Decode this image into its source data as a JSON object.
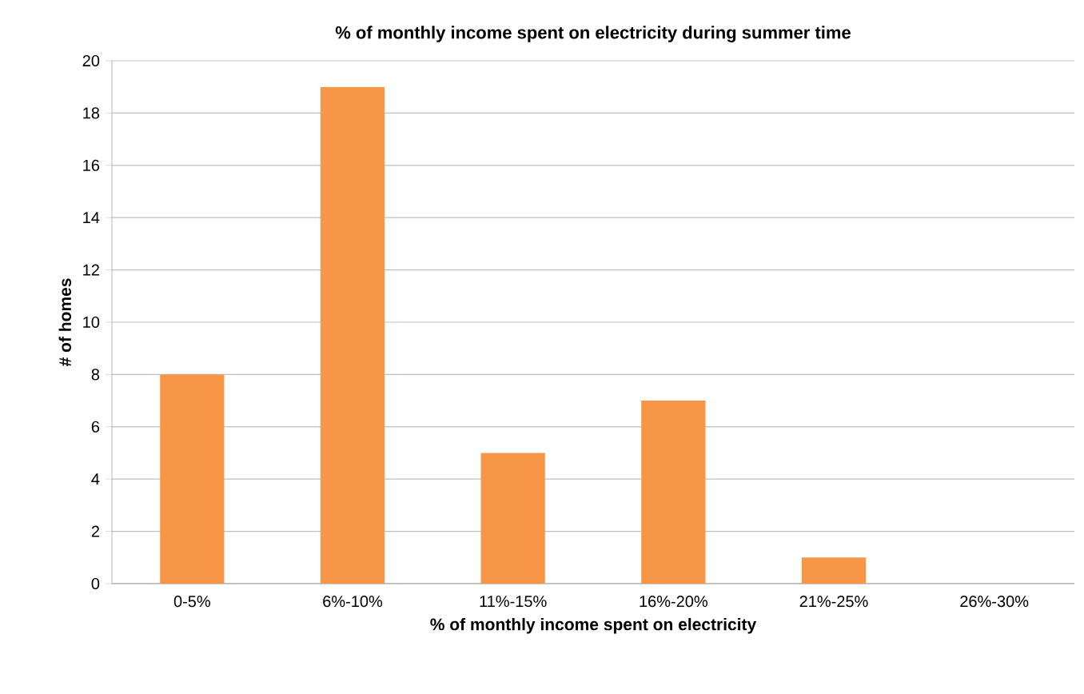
{
  "chart_data": {
    "type": "bar",
    "title": "% of monthly income spent on electricity during summer time",
    "xlabel": "% of monthly income spent on electricity",
    "ylabel": "# of homes",
    "categories": [
      "0-5%",
      "6%-10%",
      "11%-15%",
      "16%-20%",
      "21%-25%",
      "26%-30%"
    ],
    "values": [
      8,
      19,
      5,
      7,
      1,
      0
    ],
    "color": "#f79646",
    "ylim": [
      0,
      20
    ],
    "yticks": [
      0,
      2,
      4,
      6,
      8,
      10,
      12,
      14,
      16,
      18,
      20
    ],
    "grid": "y"
  }
}
